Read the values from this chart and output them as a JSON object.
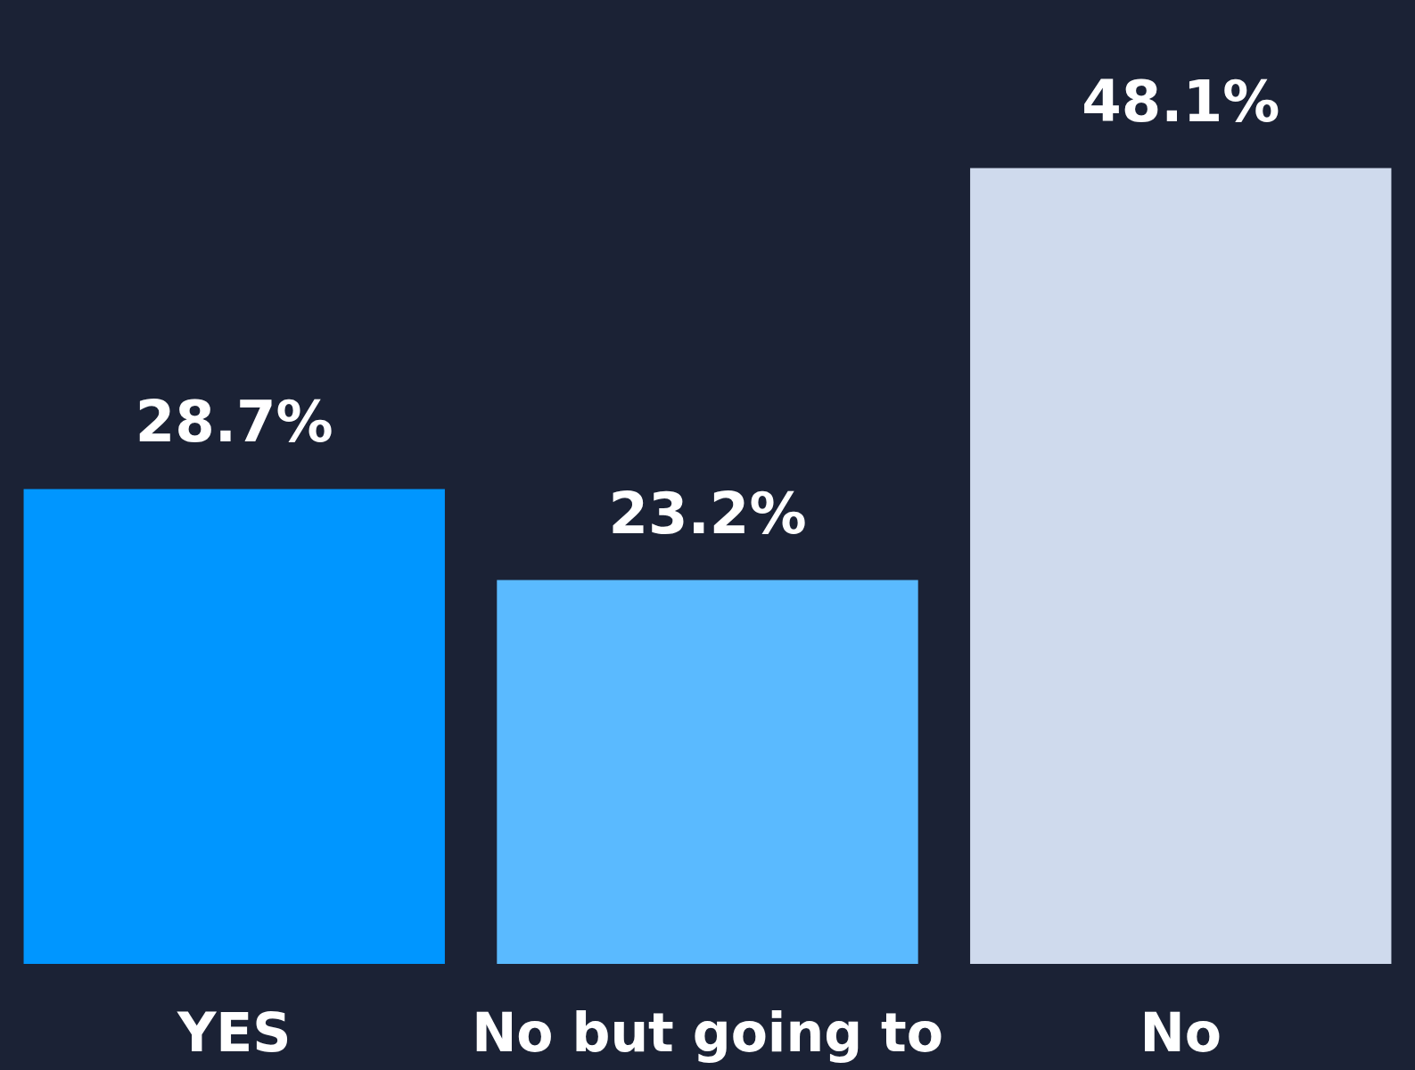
{
  "chart_data": {
    "type": "bar",
    "categories": [
      "YES",
      "No but going to",
      "No"
    ],
    "values": [
      28.7,
      23.2,
      48.1
    ],
    "colors": [
      "#0096ff",
      "#5abaff",
      "#cfdaed"
    ],
    "value_labels": [
      "28.7%",
      "23.2%",
      "48.1%"
    ]
  }
}
